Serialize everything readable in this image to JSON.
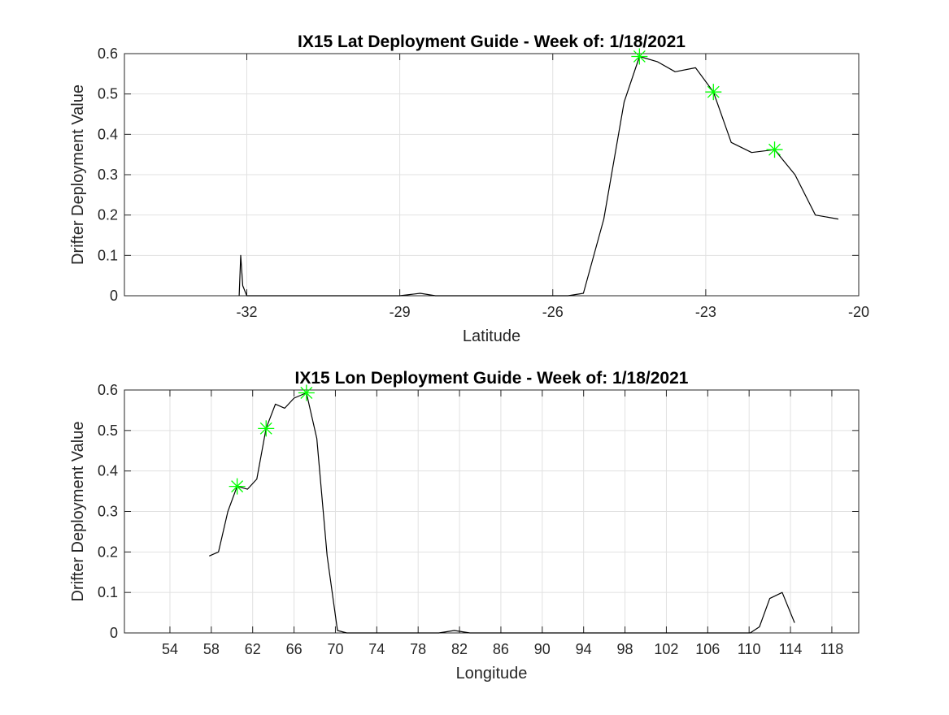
{
  "chart_data": [
    {
      "type": "line",
      "title": "IX15 Lat Deployment Guide - Week of: 1/18/2021",
      "xlabel": "Latitude",
      "ylabel": "Drifter Deployment Value",
      "xlim": [
        -34.4,
        -20
      ],
      "ylim": [
        0,
        0.6
      ],
      "xticks": [
        -32,
        -29,
        -26,
        -23,
        -20
      ],
      "yticks": [
        0,
        0.1,
        0.2,
        0.3,
        0.4,
        0.5,
        0.6
      ],
      "grid": true,
      "line_color": "#000000",
      "marker_color": "#00ff00",
      "series": [
        {
          "x": [
            -32.15,
            -32.12,
            -32.08,
            -32.0,
            -31.5,
            -31.0,
            -30.5,
            -30.0,
            -29.5,
            -29.0,
            -28.8,
            -28.6,
            -28.3,
            -28.0,
            -27.5,
            -27.0,
            -26.5,
            -26.0,
            -25.7,
            -25.4,
            -25.0,
            -24.6,
            -24.3,
            -23.95,
            -23.6,
            -23.2,
            -22.85,
            -22.5,
            -22.1,
            -21.65,
            -21.25,
            -20.85,
            -20.4
          ],
          "y": [
            0.0,
            0.1,
            0.025,
            0.0,
            0.0,
            0.0,
            0.0,
            0.0,
            0.0,
            0.0,
            0.003,
            0.006,
            0.0,
            0.0,
            0.0,
            0.0,
            0.0,
            0.0,
            0.0,
            0.006,
            0.19,
            0.48,
            0.593,
            0.58,
            0.555,
            0.565,
            0.505,
            0.38,
            0.355,
            0.362,
            0.3,
            0.2,
            0.19
          ]
        }
      ],
      "markers": {
        "symbol": "asterisk",
        "x": [
          -24.3,
          -22.85,
          -21.65
        ],
        "y": [
          0.593,
          0.505,
          0.362
        ]
      }
    },
    {
      "type": "line",
      "title": "IX15 Lon Deployment Guide - Week of: 1/18/2021",
      "xlabel": "Longitude",
      "ylabel": "Drifter Deployment Value",
      "xlim": [
        49.6,
        120.6
      ],
      "ylim": [
        0,
        0.6
      ],
      "xticks": [
        54,
        58,
        62,
        66,
        70,
        74,
        78,
        82,
        86,
        90,
        94,
        98,
        102,
        106,
        110,
        114,
        118
      ],
      "yticks": [
        0,
        0.1,
        0.2,
        0.3,
        0.4,
        0.5,
        0.6
      ],
      "grid": true,
      "line_color": "#000000",
      "marker_color": "#00ff00",
      "series": [
        {
          "x": [
            57.8,
            58.7,
            59.6,
            60.5,
            61.5,
            62.4,
            63.3,
            64.2,
            65.1,
            66.0,
            67.2,
            68.2,
            69.2,
            70.2,
            71.1,
            80.0,
            81.5,
            83.0,
            90.0,
            110.1,
            111.0,
            112.0,
            113.2,
            114.4
          ],
          "y": [
            0.19,
            0.2,
            0.3,
            0.362,
            0.355,
            0.38,
            0.505,
            0.565,
            0.555,
            0.58,
            0.593,
            0.48,
            0.19,
            0.006,
            0.0,
            0.0,
            0.006,
            0.0,
            0.0,
            0.0,
            0.015,
            0.085,
            0.1,
            0.025
          ]
        }
      ],
      "markers": {
        "symbol": "asterisk",
        "x": [
          60.5,
          63.3,
          67.2
        ],
        "y": [
          0.362,
          0.505,
          0.593
        ]
      }
    }
  ]
}
